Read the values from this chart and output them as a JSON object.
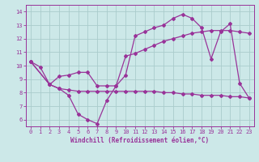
{
  "xlabel": "Windchill (Refroidissement éolien,°C)",
  "xlim": [
    -0.5,
    23.5
  ],
  "ylim": [
    5.5,
    14.5
  ],
  "xticks": [
    0,
    1,
    2,
    3,
    4,
    5,
    6,
    7,
    8,
    9,
    10,
    11,
    12,
    13,
    14,
    15,
    16,
    17,
    18,
    19,
    20,
    21,
    22,
    23
  ],
  "yticks": [
    6,
    7,
    8,
    9,
    10,
    11,
    12,
    13,
    14
  ],
  "bg_color": "#cce8e8",
  "line_color": "#993399",
  "grid_color": "#aacccc",
  "line1_x": [
    0,
    1,
    2,
    3,
    4,
    5,
    6,
    7,
    8,
    9,
    10,
    11,
    12,
    13,
    14,
    15,
    16,
    17,
    18,
    19,
    20,
    21,
    22,
    23
  ],
  "line1_y": [
    10.3,
    9.9,
    8.6,
    8.3,
    7.8,
    6.4,
    6.0,
    5.7,
    7.4,
    8.5,
    9.3,
    12.2,
    12.5,
    12.8,
    13.0,
    13.5,
    13.8,
    13.5,
    12.8,
    10.5,
    12.5,
    13.1,
    8.7,
    7.6
  ],
  "line2_x": [
    0,
    2,
    3,
    4,
    5,
    6,
    7,
    8,
    9,
    10,
    11,
    12,
    13,
    14,
    15,
    16,
    17,
    18,
    19,
    20,
    21,
    22,
    23
  ],
  "line2_y": [
    10.3,
    8.6,
    9.2,
    9.3,
    9.5,
    9.5,
    8.5,
    8.5,
    8.5,
    10.7,
    10.9,
    11.2,
    11.5,
    11.8,
    12.0,
    12.2,
    12.4,
    12.5,
    12.6,
    12.6,
    12.6,
    12.5,
    12.4
  ],
  "line3_x": [
    0,
    2,
    3,
    4,
    5,
    6,
    7,
    8,
    9,
    10,
    11,
    12,
    13,
    14,
    15,
    16,
    17,
    18,
    19,
    20,
    21,
    22,
    23
  ],
  "line3_y": [
    10.3,
    8.6,
    8.3,
    8.2,
    8.1,
    8.1,
    8.1,
    8.1,
    8.1,
    8.1,
    8.1,
    8.1,
    8.1,
    8.0,
    8.0,
    7.9,
    7.9,
    7.8,
    7.8,
    7.8,
    7.7,
    7.7,
    7.6
  ]
}
